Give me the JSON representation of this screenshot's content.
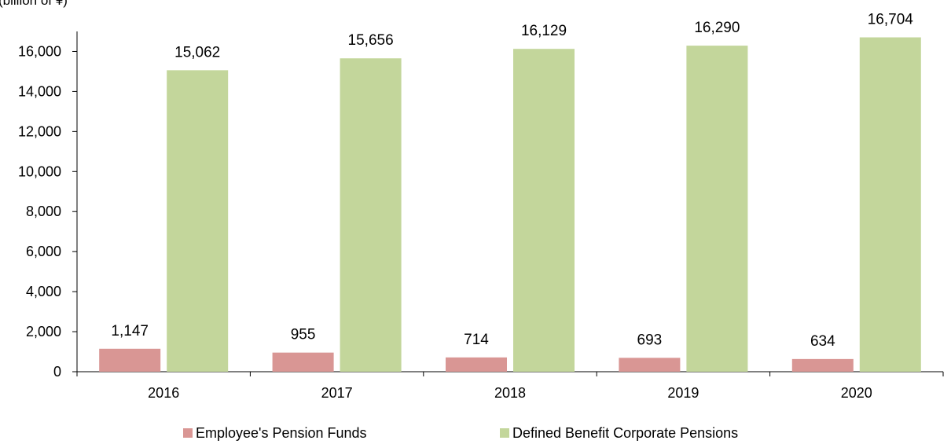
{
  "chart_data": {
    "type": "bar",
    "unit_label": "(billion of ¥)",
    "categories": [
      "2016",
      "2017",
      "2018",
      "2019",
      "2020"
    ],
    "series": [
      {
        "name": "Employee's Pension Funds",
        "color": "#d99694",
        "values": [
          1147,
          955,
          714,
          693,
          634
        ],
        "labels": [
          "1,147",
          "955",
          "714",
          "693",
          "634"
        ]
      },
      {
        "name": "Defined Benefit Corporate Pensions",
        "color": "#c3d69b",
        "values": [
          15062,
          15656,
          16129,
          16290,
          16704
        ],
        "labels": [
          "15,062",
          "15,656",
          "16,129",
          "16,290",
          "16,704"
        ]
      }
    ],
    "ylim": [
      0,
      17000
    ],
    "yticks": [
      0,
      2000,
      4000,
      6000,
      8000,
      10000,
      12000,
      14000,
      16000
    ],
    "ytick_labels": [
      "0",
      "2,000",
      "4,000",
      "6,000",
      "8,000",
      "10,000",
      "12,000",
      "14,000",
      "16,000"
    ],
    "grid": false,
    "legend_position": "bottom"
  }
}
